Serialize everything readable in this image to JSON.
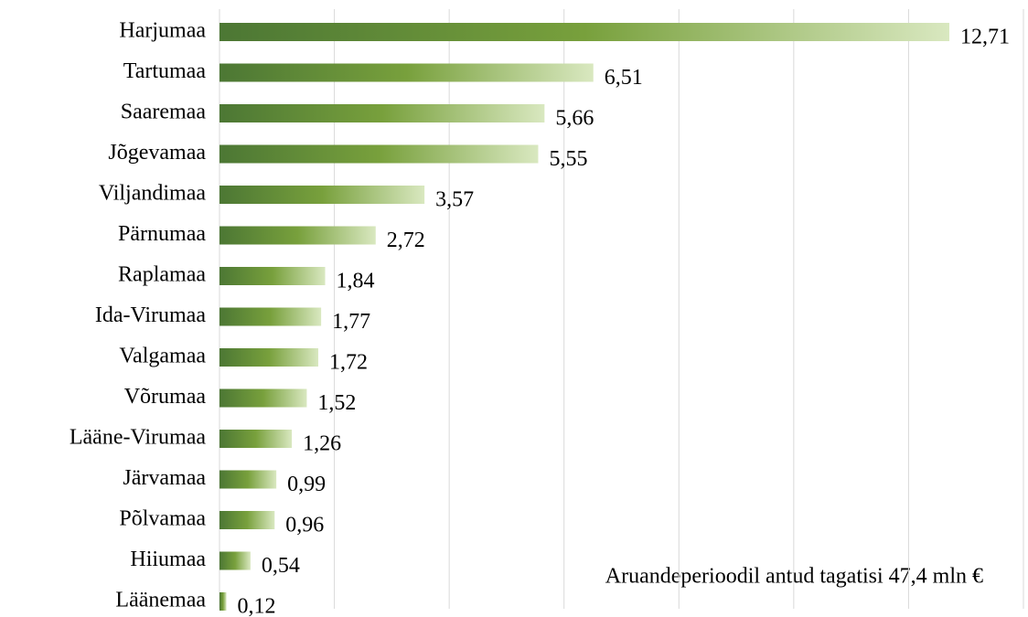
{
  "chart_data": {
    "type": "barh",
    "categories": [
      "Harjumaa",
      "Tartumaa",
      "Saaremaa",
      "Jõgevamaa",
      "Viljandimaa",
      "Pärnumaa",
      "Raplamaa",
      "Ida-Virumaa",
      "Valgamaa",
      "Võrumaa",
      "Lääne-Virumaa",
      "Järvamaa",
      "Põlvamaa",
      "Hiiumaa",
      "Läänemaa"
    ],
    "values": [
      12.71,
      6.51,
      5.66,
      5.55,
      3.57,
      2.72,
      1.84,
      1.77,
      1.72,
      1.52,
      1.26,
      0.99,
      0.96,
      0.54,
      0.12
    ],
    "value_labels": [
      "12,71",
      "6,51",
      "5,66",
      "5,55",
      "3,57",
      "2,72",
      "1,84",
      "1,77",
      "1,72",
      "1,52",
      "1,26",
      "0,99",
      "0,96",
      "0,54",
      "0,12"
    ],
    "gradient": [
      "#4c7734",
      "#78a03c",
      "#d9e8c0"
    ],
    "xlim": [
      0,
      14
    ],
    "xticks": [
      0,
      2,
      4,
      6,
      8,
      10,
      12,
      14
    ],
    "grid": true,
    "annotation": "Aruandeperioodil antud tagatisi 47,4 mln €"
  }
}
